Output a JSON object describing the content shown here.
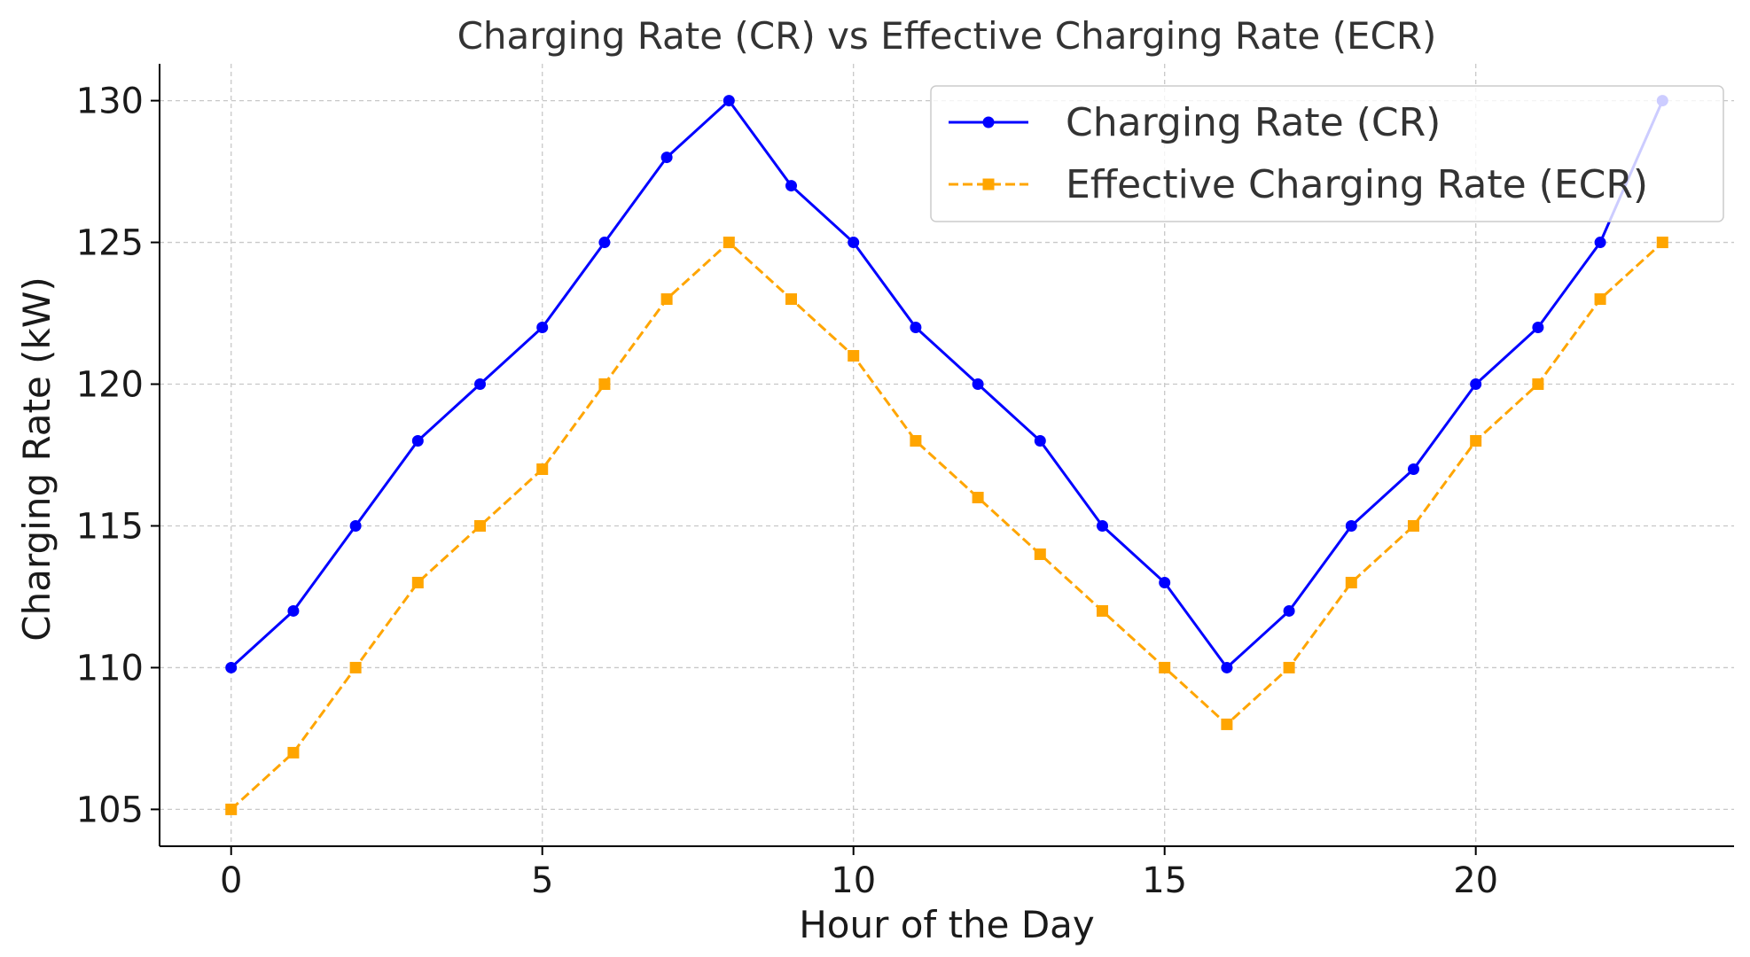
{
  "chart_data": {
    "type": "line",
    "title": "Charging Rate (CR) vs Effective Charging Rate (ECR)",
    "xlabel": "Hour of the Day",
    "ylabel": "Charging Rate (kW)",
    "xlim": [
      -1.15,
      24.15
    ],
    "ylim": [
      103.7,
      131.3
    ],
    "xticks": [
      0,
      5,
      10,
      15,
      20
    ],
    "yticks": [
      105,
      110,
      115,
      120,
      125,
      130
    ],
    "grid": true,
    "legend_position": "top-right",
    "x": [
      0,
      1,
      2,
      3,
      4,
      5,
      6,
      7,
      8,
      9,
      10,
      11,
      12,
      13,
      14,
      15,
      16,
      17,
      18,
      19,
      20,
      21,
      22,
      23
    ],
    "series": [
      {
        "name": "Charging Rate (CR)",
        "color": "#0000ff",
        "marker": "circle",
        "linestyle": "solid",
        "values": [
          110,
          112,
          115,
          118,
          120,
          122,
          125,
          128,
          130,
          127,
          125,
          122,
          120,
          118,
          115,
          113,
          110,
          112,
          115,
          117,
          120,
          122,
          125,
          130
        ]
      },
      {
        "name": "Effective Charging Rate (ECR)",
        "color": "#ffa500",
        "marker": "square",
        "linestyle": "dashed",
        "values": [
          105,
          107,
          110,
          113,
          115,
          117,
          120,
          123,
          125,
          123,
          121,
          118,
          116,
          114,
          112,
          110,
          108,
          110,
          113,
          115,
          118,
          120,
          123,
          125
        ]
      }
    ]
  }
}
